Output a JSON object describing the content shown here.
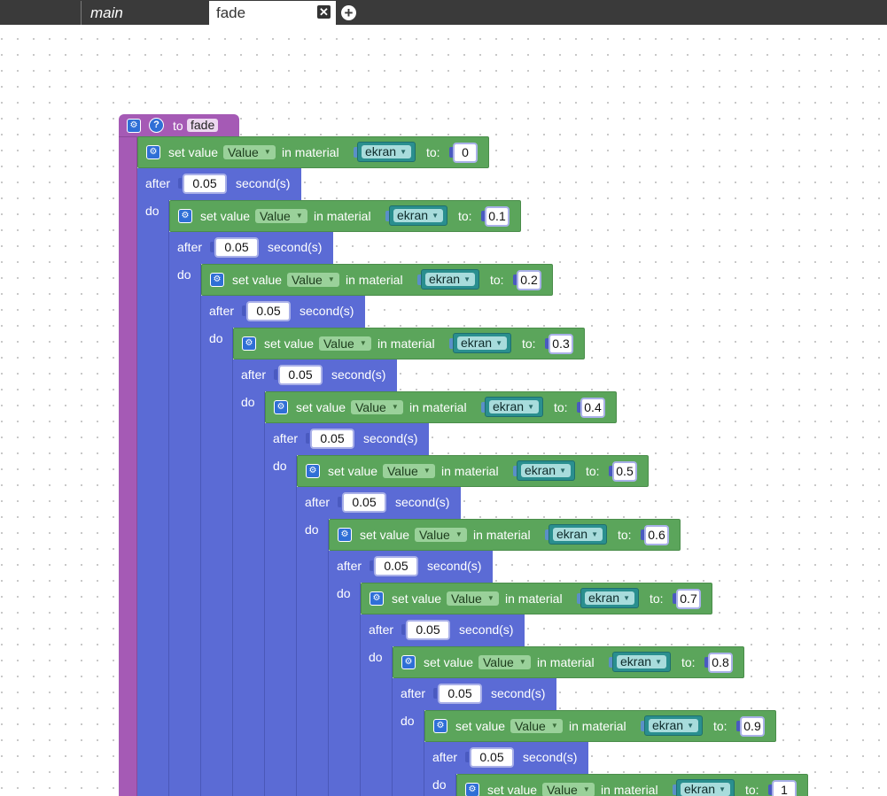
{
  "tabs": [
    {
      "label": "main",
      "active": false
    },
    {
      "label": "fade",
      "active": true
    }
  ],
  "tab_controls": {
    "close_icon": "close-icon",
    "add_icon": "add-tab-icon"
  },
  "colors": {
    "procedure_block": "#a55ab5",
    "set_value_block": "#5ba55b",
    "after_block": "#5b6bd5",
    "material_block": "#2a8f8f",
    "tab_bar": "#3a3a3a"
  },
  "procedure": {
    "prefix": "to",
    "name": "fade",
    "gear_icon": "gear-icon",
    "help_icon": "help-icon",
    "help_glyph": "?"
  },
  "labels": {
    "set_value": "set value",
    "in_material": "in material",
    "to": "to:",
    "after": "after",
    "seconds": "second(s)",
    "do": "do"
  },
  "steps": [
    {
      "property": "Value",
      "material": "ekran",
      "value": "0",
      "delay": "0.05"
    },
    {
      "property": "Value",
      "material": "ekran",
      "value": "0.1",
      "delay": "0.05"
    },
    {
      "property": "Value",
      "material": "ekran",
      "value": "0.2",
      "delay": "0.05"
    },
    {
      "property": "Value",
      "material": "ekran",
      "value": "0.3",
      "delay": "0.05"
    },
    {
      "property": "Value",
      "material": "ekran",
      "value": "0.4",
      "delay": "0.05"
    },
    {
      "property": "Value",
      "material": "ekran",
      "value": "0.5",
      "delay": "0.05"
    },
    {
      "property": "Value",
      "material": "ekran",
      "value": "0.6",
      "delay": "0.05"
    },
    {
      "property": "Value",
      "material": "ekran",
      "value": "0.7",
      "delay": "0.05"
    },
    {
      "property": "Value",
      "material": "ekran",
      "value": "0.8",
      "delay": "0.05"
    },
    {
      "property": "Value",
      "material": "ekran",
      "value": "0.9",
      "delay": "0.05"
    },
    {
      "property": "Value",
      "material": "ekran",
      "value": "1",
      "delay": null
    }
  ]
}
